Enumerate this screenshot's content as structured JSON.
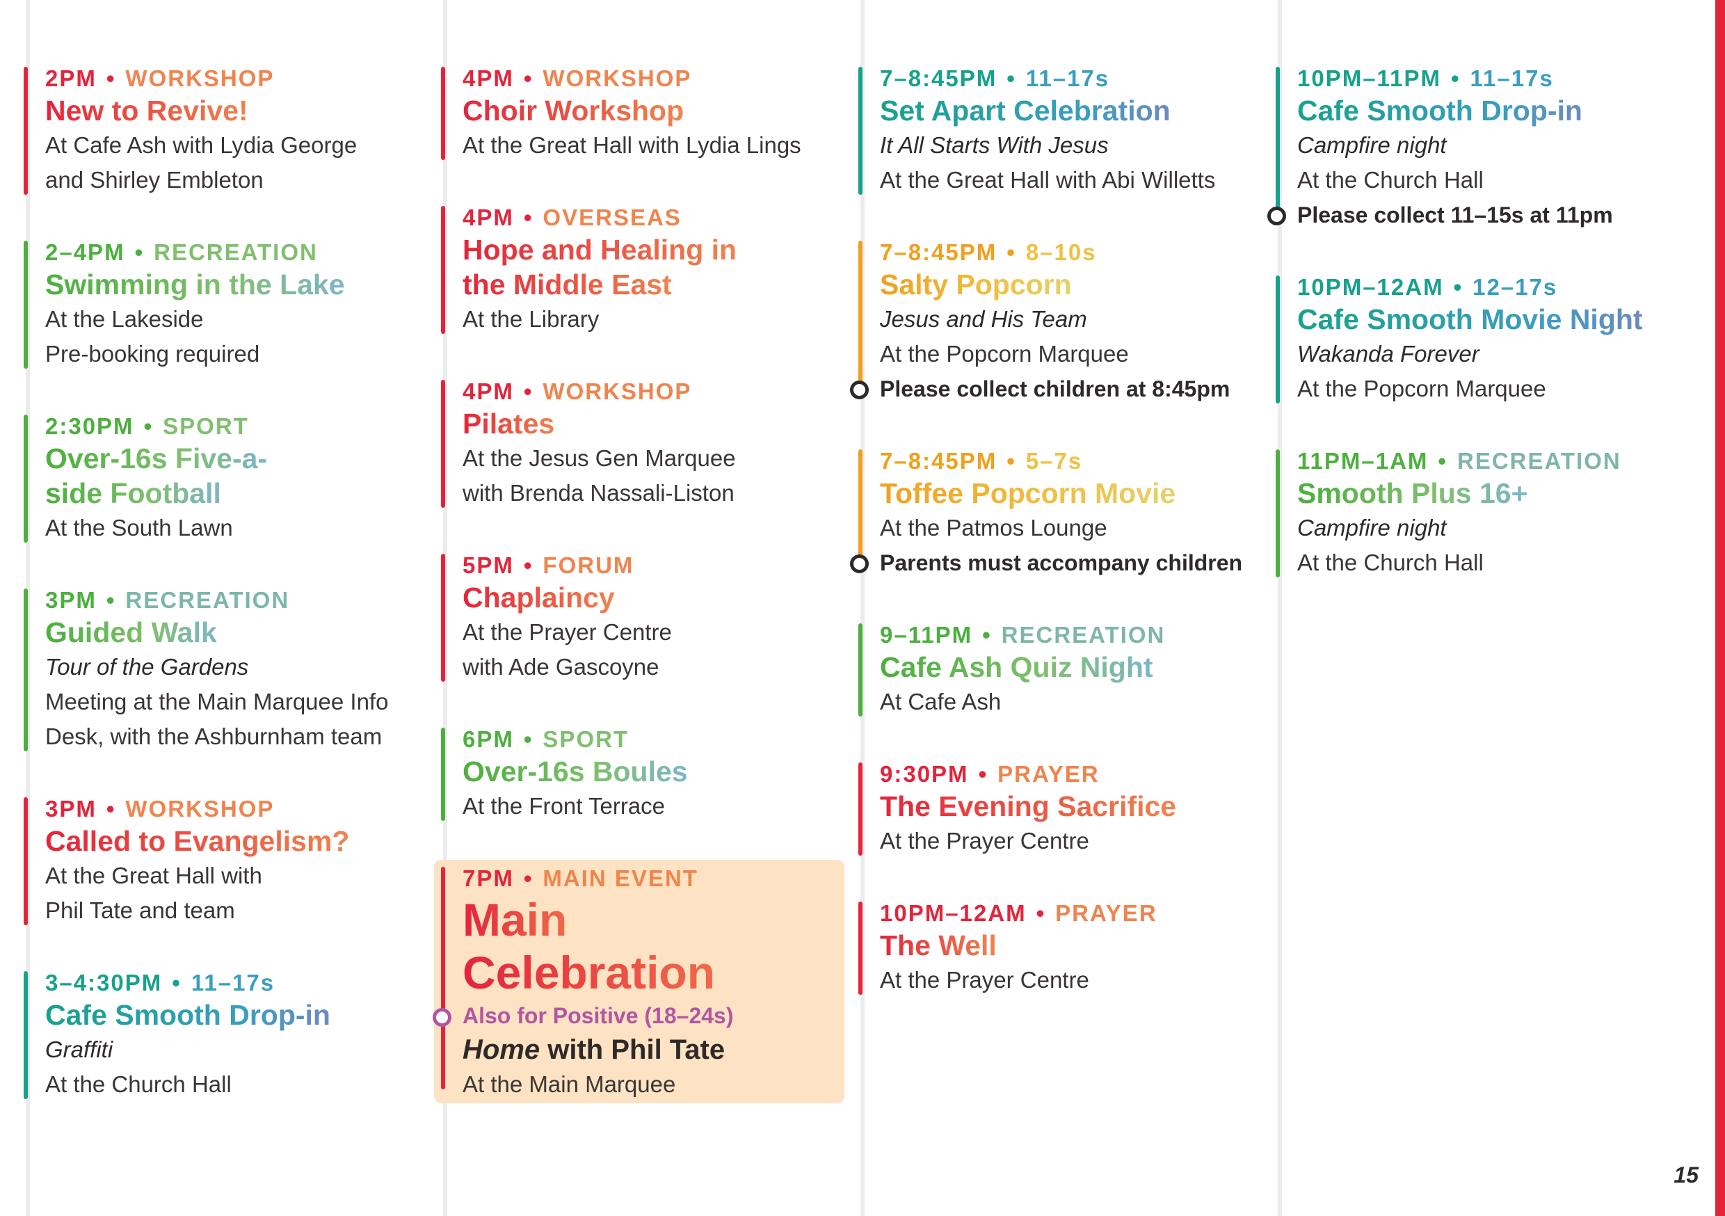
{
  "page_number": "15",
  "col1": [
    {
      "time": "2PM",
      "cat": "WORKSHOP",
      "title": "New to Revive!",
      "lines": [
        "At Cafe Ash with Lydia George",
        "and Shirley Embleton"
      ]
    },
    {
      "time": "2–4PM",
      "cat": "RECREATION",
      "title": "Swimming in the Lake",
      "lines": [
        "At the Lakeside",
        "Pre-booking required"
      ]
    },
    {
      "time": "2:30PM",
      "cat": "SPORT",
      "title1": "Over-16s Five-a-",
      "title2": "side Football",
      "lines": [
        "At the South Lawn"
      ]
    },
    {
      "time": "3PM",
      "cat": "RECREATION",
      "title": "Guided Walk",
      "sub": "Tour of the Gardens",
      "lines": [
        "Meeting at the Main Marquee Info",
        "Desk, with the Ashburnham team"
      ]
    },
    {
      "time": "3PM",
      "cat": "WORKSHOP",
      "title": "Called to Evangelism?",
      "lines": [
        "At the Great Hall with",
        "Phil Tate and team"
      ]
    },
    {
      "time": "3–4:30PM",
      "cat": "11–17s",
      "title": "Cafe Smooth Drop-in",
      "sub": "Graffiti",
      "lines": [
        "At the Church Hall"
      ]
    }
  ],
  "col2": [
    {
      "time": "4PM",
      "cat": "WORKSHOP",
      "title": "Choir Workshop",
      "lines": [
        "At the Great Hall with Lydia Lings"
      ]
    },
    {
      "time": "4PM",
      "cat": "OVERSEAS",
      "title1": "Hope and Healing in",
      "title2": "the Middle East",
      "lines": [
        "At the Library"
      ]
    },
    {
      "time": "4PM",
      "cat": "WORKSHOP",
      "title": "Pilates",
      "lines": [
        "At the Jesus Gen Marquee",
        "with Brenda Nassali-Liston"
      ]
    },
    {
      "time": "5PM",
      "cat": "FORUM",
      "title": "Chaplaincy",
      "lines": [
        "At the Prayer Centre",
        "with Ade Gascoyne"
      ]
    },
    {
      "time": "6PM",
      "cat": "SPORT",
      "title": "Over-16s Boules",
      "lines": [
        "At the Front Terrace"
      ]
    },
    {
      "time": "7PM",
      "cat": "MAIN EVENT",
      "title1": "Main",
      "title2": "Celebration",
      "also": "Also for Positive (18–24s)",
      "home_em": "Home",
      "home_rest": " with Phil Tate",
      "lines": [
        "At the Main Marquee"
      ]
    }
  ],
  "col3": [
    {
      "time": "7–8:45PM",
      "cat": "11–17s",
      "title": "Set Apart Celebration",
      "sub": "It All Starts With Jesus",
      "lines": [
        "At the Great Hall with Abi Willetts"
      ]
    },
    {
      "time": "7–8:45PM",
      "cat": "8–10s",
      "title": "Salty Popcorn",
      "sub": "Jesus and His Team",
      "lines": [
        "At the Popcorn Marquee"
      ],
      "note": "Please collect children at 8:45pm"
    },
    {
      "time": "7–8:45PM",
      "cat": "5–7s",
      "title": "Toffee Popcorn Movie",
      "lines": [
        "At the Patmos Lounge"
      ],
      "note": "Parents must accompany children"
    },
    {
      "time": "9–11PM",
      "cat": "RECREATION",
      "title": "Cafe Ash Quiz Night",
      "lines": [
        "At Cafe Ash"
      ]
    },
    {
      "time": "9:30PM",
      "cat": "PRAYER",
      "title": "The Evening Sacrifice",
      "lines": [
        "At the Prayer Centre"
      ]
    },
    {
      "time": "10PM–12AM",
      "cat": "PRAYER",
      "title": "The Well",
      "lines": [
        "At the Prayer Centre"
      ]
    }
  ],
  "col4": [
    {
      "time": "10PM–11PM",
      "cat": "11–17s",
      "title": "Cafe Smooth Drop-in",
      "sub": "Campfire night",
      "lines": [
        "At the Church Hall"
      ],
      "note": "Please collect 11–15s at 11pm"
    },
    {
      "time": "10PM–12AM",
      "cat": "12–17s",
      "title": "Cafe Smooth Movie Night",
      "sub": "Wakanda Forever",
      "lines": [
        "At the Popcorn Marquee"
      ]
    },
    {
      "time": "11PM–1AM",
      "cat": "RECREATION",
      "title": "Smooth Plus 16+",
      "sub": "Campfire night",
      "lines": [
        "At the Church Hall"
      ]
    }
  ],
  "colors": {
    "red": "#e4243b",
    "green": "#4caf3e",
    "teal": "#16a28a",
    "yellow": "#f0a01e",
    "purple": "#b255a3",
    "main_bg": "#fde3c3",
    "stripe": "#e4243b"
  }
}
